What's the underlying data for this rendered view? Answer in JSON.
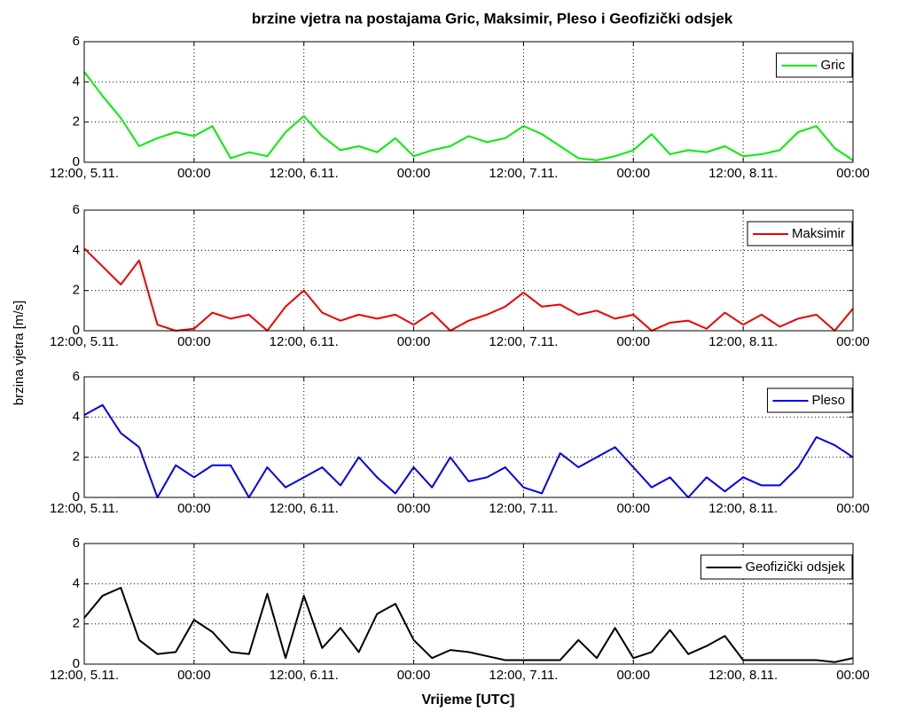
{
  "title": "brzine vjetra na postajama Gric, Maksimir, Pleso i Geofizički odsjek",
  "ylabel": "brzina vjetra [m/s]",
  "xlabel": "Vrijeme [UTC]",
  "chart_data": [
    {
      "type": "line",
      "x": [
        0,
        2,
        4,
        6,
        8,
        10,
        12,
        14,
        16,
        18,
        20,
        22,
        24,
        26,
        28,
        30,
        32,
        34,
        36,
        38,
        40,
        42,
        44,
        46,
        48,
        50,
        52,
        54,
        56,
        58,
        60,
        62,
        64,
        66,
        68,
        70,
        72,
        74,
        76,
        78,
        80,
        82,
        84
      ],
      "series": [
        {
          "name": "Gric",
          "color": "#00ee00",
          "values": [
            4.5,
            3.3,
            2.2,
            0.8,
            1.2,
            1.5,
            1.3,
            1.8,
            0.2,
            0.5,
            0.3,
            1.5,
            2.3,
            1.3,
            0.6,
            0.8,
            0.5,
            1.2,
            0.3,
            0.6,
            0.8,
            1.3,
            1.0,
            1.2,
            1.8,
            1.4,
            0.8,
            0.2,
            0.1,
            0.3,
            0.6,
            1.4,
            0.4,
            0.6,
            0.5,
            0.8,
            0.3,
            0.4,
            0.6,
            1.5,
            1.8,
            0.7,
            0.1
          ]
        }
      ],
      "xlim": [
        0,
        84
      ],
      "xticks": [
        {
          "value": 0,
          "label": "12:00, 5.11."
        },
        {
          "value": 12,
          "label": "00:00"
        },
        {
          "value": 24,
          "label": "12:00, 6.11."
        },
        {
          "value": 36,
          "label": "00:00"
        },
        {
          "value": 48,
          "label": "12:00, 7.11."
        },
        {
          "value": 60,
          "label": "00:00"
        },
        {
          "value": 72,
          "label": "12:00, 8.11."
        },
        {
          "value": 84,
          "label": "00:00"
        }
      ],
      "ylim": [
        0,
        6
      ],
      "yticks": [
        0,
        2,
        4,
        6
      ],
      "grid": true,
      "legend": "upper right"
    },
    {
      "type": "line",
      "x": [
        0,
        2,
        4,
        6,
        8,
        10,
        12,
        14,
        16,
        18,
        20,
        22,
        24,
        26,
        28,
        30,
        32,
        34,
        36,
        38,
        40,
        42,
        44,
        46,
        48,
        50,
        52,
        54,
        56,
        58,
        60,
        62,
        64,
        66,
        68,
        70,
        72,
        74,
        76,
        78,
        80,
        82,
        84
      ],
      "series": [
        {
          "name": "Maksimir",
          "color": "#ee0000",
          "values": [
            4.1,
            3.2,
            2.3,
            3.5,
            0.3,
            0,
            0.1,
            0.9,
            0.6,
            0.8,
            0,
            1.2,
            2.0,
            0.9,
            0.5,
            0.8,
            0.6,
            0.8,
            0.3,
            0.9,
            0,
            0.5,
            0.8,
            1.2,
            1.9,
            1.2,
            1.3,
            0.8,
            1.0,
            0.6,
            0.8,
            0,
            0.4,
            0.5,
            0.1,
            0.9,
            0.3,
            0.8,
            0.2,
            0.6,
            0.8,
            0,
            1.1
          ]
        }
      ],
      "xlim": [
        0,
        84
      ],
      "xticks": [
        {
          "value": 0,
          "label": "12:00, 5.11."
        },
        {
          "value": 12,
          "label": "00:00"
        },
        {
          "value": 24,
          "label": "12:00, 6.11."
        },
        {
          "value": 36,
          "label": "00:00"
        },
        {
          "value": 48,
          "label": "12:00, 7.11."
        },
        {
          "value": 60,
          "label": "00:00"
        },
        {
          "value": 72,
          "label": "12:00, 8.11."
        },
        {
          "value": 84,
          "label": "00:00"
        }
      ],
      "ylim": [
        0,
        6
      ],
      "yticks": [
        0,
        2,
        4,
        6
      ],
      "grid": true,
      "legend": "upper right"
    },
    {
      "type": "line",
      "x": [
        0,
        2,
        4,
        6,
        8,
        10,
        12,
        14,
        16,
        18,
        20,
        22,
        24,
        26,
        28,
        30,
        32,
        34,
        36,
        38,
        40,
        42,
        44,
        46,
        48,
        50,
        52,
        54,
        56,
        58,
        60,
        62,
        64,
        66,
        68,
        70,
        72,
        74,
        76,
        78,
        80,
        82,
        84
      ],
      "series": [
        {
          "name": "Pleso",
          "color": "#0000ee",
          "values": [
            4.1,
            4.6,
            3.2,
            2.5,
            0,
            1.6,
            1.0,
            1.6,
            1.6,
            0,
            1.5,
            0.5,
            1.0,
            1.5,
            0.6,
            2.0,
            1.0,
            0.2,
            1.5,
            0.5,
            2.0,
            0.8,
            1.0,
            1.5,
            0.5,
            0.2,
            2.2,
            1.5,
            2.0,
            2.5,
            1.5,
            0.5,
            1.0,
            0,
            1.0,
            0.3,
            1.0,
            0.6,
            0.6,
            1.5,
            3.0,
            2.6,
            2.0
          ]
        }
      ],
      "xlim": [
        0,
        84
      ],
      "xticks": [
        {
          "value": 0,
          "label": "12:00, 5.11."
        },
        {
          "value": 12,
          "label": "00:00"
        },
        {
          "value": 24,
          "label": "12:00, 6.11."
        },
        {
          "value": 36,
          "label": "00:00"
        },
        {
          "value": 48,
          "label": "12:00, 7.11."
        },
        {
          "value": 60,
          "label": "00:00"
        },
        {
          "value": 72,
          "label": "12:00, 8.11."
        },
        {
          "value": 84,
          "label": "00:00"
        }
      ],
      "ylim": [
        0,
        6
      ],
      "yticks": [
        0,
        2,
        4,
        6
      ],
      "grid": true,
      "legend": "upper right"
    },
    {
      "type": "line",
      "x": [
        0,
        2,
        4,
        6,
        8,
        10,
        12,
        14,
        16,
        18,
        20,
        22,
        24,
        26,
        28,
        30,
        32,
        34,
        36,
        38,
        40,
        42,
        44,
        46,
        48,
        50,
        52,
        54,
        56,
        58,
        60,
        62,
        64,
        66,
        68,
        70,
        72,
        74,
        76,
        78,
        80,
        82,
        84
      ],
      "series": [
        {
          "name": "Geofizički odsjek",
          "color": "#000000",
          "values": [
            2.3,
            3.4,
            3.8,
            1.2,
            0.5,
            0.6,
            2.2,
            1.6,
            0.6,
            0.5,
            3.5,
            0.3,
            3.4,
            0.8,
            1.8,
            0.6,
            2.5,
            3.0,
            1.2,
            0.3,
            0.7,
            0.6,
            0.4,
            0.2,
            0.2,
            0.2,
            0.2,
            1.2,
            0.3,
            1.8,
            0.3,
            0.6,
            1.7,
            0.5,
            0.9,
            1.4,
            0.2,
            0.2,
            0.2,
            0.2,
            0.2,
            0.1,
            0.3
          ]
        }
      ],
      "xlim": [
        0,
        84
      ],
      "xticks": [
        {
          "value": 0,
          "label": "12:00, 5.11."
        },
        {
          "value": 12,
          "label": "00:00"
        },
        {
          "value": 24,
          "label": "12:00, 6.11."
        },
        {
          "value": 36,
          "label": "00:00"
        },
        {
          "value": 48,
          "label": "12:00, 7.11."
        },
        {
          "value": 60,
          "label": "00:00"
        },
        {
          "value": 72,
          "label": "12:00, 8.11."
        },
        {
          "value": 84,
          "label": "00:00"
        }
      ],
      "ylim": [
        0,
        6
      ],
      "yticks": [
        0,
        2,
        4,
        6
      ],
      "grid": true,
      "legend": "upper right"
    }
  ]
}
